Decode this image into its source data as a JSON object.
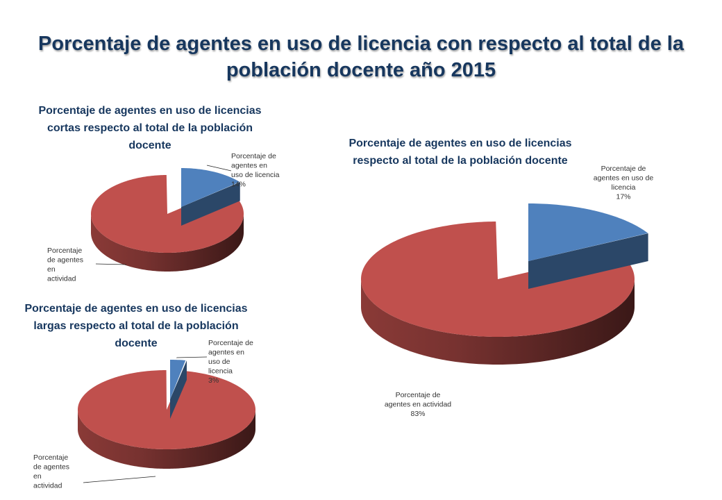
{
  "page_title": "Porcentaje de agentes en uso de licencia con respecto al total de la población docente año 2015",
  "colors": {
    "title": "#17375e",
    "licencia": "#4f81bd",
    "actividad": "#c0504d"
  },
  "chart_data": [
    {
      "id": "cortas",
      "type": "pie",
      "title": "Porcentaje de agentes en uso de licencias cortas respecto al total de la población docente",
      "slices": [
        {
          "label": "Porcentaje de agentes en uso de licencia",
          "value": 14,
          "value_label": "14%",
          "color": "#4f81bd",
          "exploded": true
        },
        {
          "label": "Porcentaje de agentes en actividad",
          "value": 86,
          "value_label": "",
          "color": "#c0504d",
          "exploded": false
        }
      ],
      "label_lines": {
        "licencia": [
          "Porcentaje de",
          "agentes en",
          "uso de licencia",
          "14%"
        ],
        "actividad": [
          "Porcentaje",
          "de agentes",
          "en",
          "actividad"
        ]
      }
    },
    {
      "id": "largas",
      "type": "pie",
      "title": "Porcentaje de agentes en uso de licencias largas respecto al total de la población docente",
      "slices": [
        {
          "label": "Porcentaje de agentes en uso de licencia",
          "value": 3,
          "value_label": "3%",
          "color": "#4f81bd",
          "exploded": true
        },
        {
          "label": "Porcentaje de agentes en actividad",
          "value": 97,
          "value_label": "",
          "color": "#c0504d",
          "exploded": false
        }
      ],
      "label_lines": {
        "licencia": [
          "Porcentaje de",
          "agentes en",
          "uso de",
          "licencia",
          "3%"
        ],
        "actividad": [
          "Porcentaje",
          "de agentes",
          "en",
          "actividad"
        ]
      }
    },
    {
      "id": "total",
      "type": "pie",
      "title": "Porcentaje de agentes en uso de licencias respecto al total de la población docente",
      "slices": [
        {
          "label": "Porcentaje de agentes en uso de licencia",
          "value": 17,
          "value_label": "17%",
          "color": "#4f81bd",
          "exploded": true
        },
        {
          "label": "Porcentaje de agentes en actividad",
          "value": 83,
          "value_label": "83%",
          "color": "#c0504d",
          "exploded": false
        }
      ],
      "label_lines": {
        "licencia": [
          "Porcentaje de",
          "agentes en uso de",
          "licencia",
          "17%"
        ],
        "actividad": [
          "Porcentaje de",
          "agentes en actividad",
          "83%"
        ]
      }
    }
  ]
}
